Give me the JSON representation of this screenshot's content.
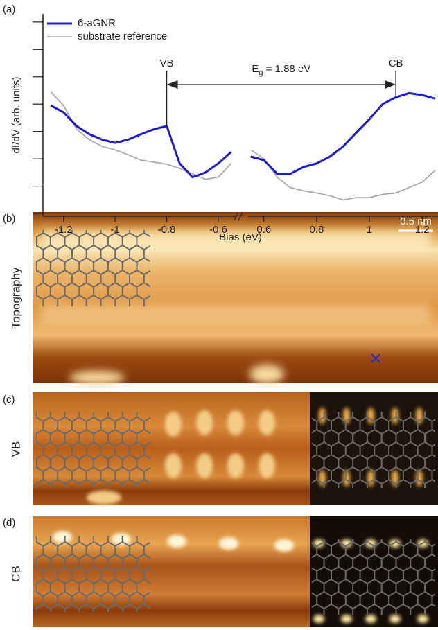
{
  "chart_data": {
    "type": "line",
    "panel_label": "(a)",
    "y_label": "dI/dV (arb. units)",
    "x_label": "Bias (eV)",
    "x": [
      -1.25,
      -1.2,
      -1.15,
      -1.1,
      -1.05,
      -1.0,
      -0.95,
      -0.9,
      -0.85,
      -0.8,
      -0.75,
      -0.7,
      -0.65,
      -0.6,
      -0.55,
      0.55,
      0.6,
      0.65,
      0.7,
      0.75,
      0.8,
      0.85,
      0.9,
      0.95,
      1.0,
      1.05,
      1.1,
      1.15,
      1.2,
      1.25
    ],
    "series": [
      {
        "name": "6-aGNR",
        "color": "#1a1ad6",
        "values": [
          3.95,
          3.7,
          3.2,
          2.9,
          2.7,
          2.58,
          2.7,
          2.9,
          3.08,
          3.2,
          1.83,
          1.33,
          1.5,
          1.83,
          2.25,
          2.08,
          1.95,
          1.45,
          1.45,
          1.7,
          1.83,
          2.08,
          2.45,
          2.95,
          3.45,
          4.0,
          4.25,
          4.4,
          4.33,
          4.2
        ]
      },
      {
        "name": "substrate reference",
        "color": "#a3a3a3",
        "values": [
          4.45,
          3.95,
          3.08,
          2.7,
          2.45,
          2.33,
          2.15,
          1.95,
          1.88,
          1.8,
          1.65,
          1.45,
          1.25,
          1.33,
          1.83,
          2.33,
          2.0,
          1.33,
          0.95,
          0.83,
          0.75,
          0.65,
          0.5,
          0.58,
          0.58,
          0.7,
          0.75,
          0.95,
          1.15,
          1.58
        ]
      }
    ],
    "x_segments": [
      {
        "xlim": [
          -1.28,
          -0.53
        ],
        "xticks": [
          -1.2,
          -1.0,
          -0.8,
          -0.6
        ]
      },
      {
        "xlim": [
          0.54,
          1.26
        ],
        "xticks": [
          0.6,
          0.8,
          1.0,
          1.2
        ]
      }
    ],
    "ylim": [
      -0.1,
      7.3
    ],
    "yticks": [
      0,
      1,
      2,
      3,
      4,
      5,
      6,
      7
    ],
    "annotations": [
      {
        "text": "VB",
        "x": -0.8
      },
      {
        "text": "CB",
        "x": 1.1
      }
    ],
    "gap_label": {
      "main": "E",
      "subscript": "g",
      "tail": " = 1.88 eV"
    }
  },
  "panels": [
    {
      "label": "(b)",
      "title": "Topography",
      "scale_bar": "0.5 nm"
    },
    {
      "label": "(c)",
      "title": "VB"
    },
    {
      "label": "(d)",
      "title": "CB"
    }
  ]
}
